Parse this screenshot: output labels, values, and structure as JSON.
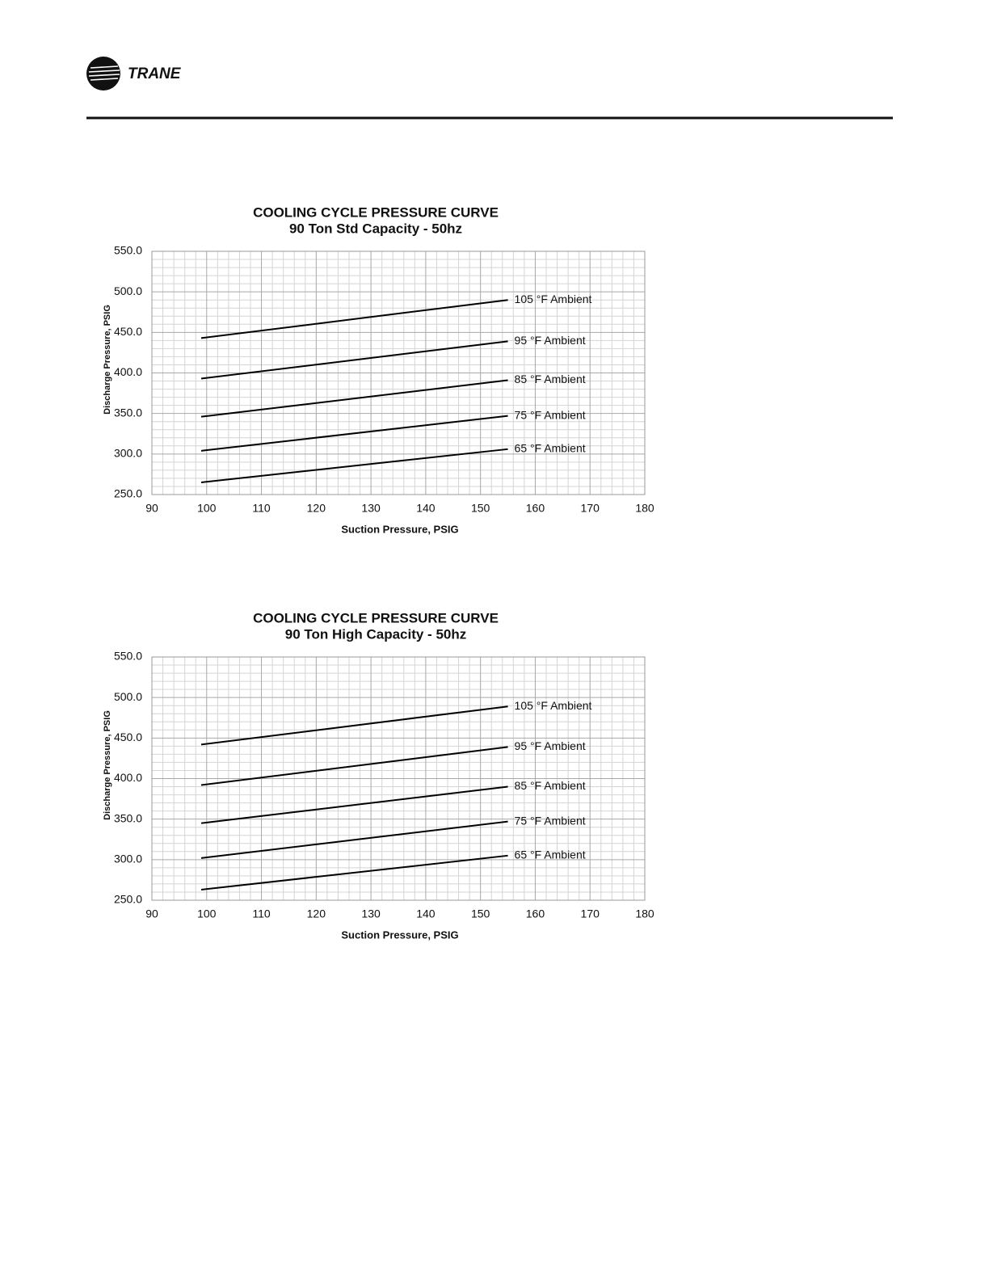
{
  "header": {
    "brand": "TRANE"
  },
  "chart_data": [
    {
      "type": "line",
      "title": "COOLING CYCLE PRESSURE CURVE",
      "subtitle": "90 Ton Std Capacity - 50hz",
      "x_label": "Suction Pressure, PSIG",
      "y_label": "Discharge Pressure, PSIG",
      "x": [
        99,
        155
      ],
      "series": [
        {
          "name": "105 °F Ambient",
          "color": "#000000",
          "values": [
            443,
            490
          ]
        },
        {
          "name": "95 °F Ambient",
          "color": "#000000",
          "values": [
            393,
            439
          ]
        },
        {
          "name": "85 °F Ambient",
          "color": "#000000",
          "values": [
            346,
            391
          ]
        },
        {
          "name": "75 °F Ambient",
          "color": "#000000",
          "values": [
            304,
            347
          ]
        },
        {
          "name": "65 °F Ambient",
          "color": "#000000",
          "values": [
            265,
            306
          ]
        }
      ],
      "xlim": [
        90,
        180
      ],
      "xticks": [
        90,
        100,
        110,
        120,
        130,
        140,
        150,
        160,
        170,
        180
      ],
      "ylim": [
        250,
        550
      ],
      "yticks": [
        {
          "value": 250,
          "label": "250.0"
        },
        {
          "value": 300,
          "label": "300.0"
        },
        {
          "value": 350,
          "label": "350.0"
        },
        {
          "value": 400,
          "label": "400.0"
        },
        {
          "value": 450,
          "label": "450.0"
        },
        {
          "value": 500,
          "label": "500.0"
        },
        {
          "value": 550,
          "label": "550.0"
        }
      ],
      "grid": true
    },
    {
      "type": "line",
      "title": "COOLING CYCLE PRESSURE CURVE",
      "subtitle": "90 Ton High Capacity - 50hz",
      "x_label": "Suction Pressure, PSIG",
      "y_label": "Discharge Pressure, PSIG",
      "x": [
        99,
        155
      ],
      "series": [
        {
          "name": "105 °F Ambient",
          "color": "#000000",
          "values": [
            442,
            489
          ]
        },
        {
          "name": "95 °F Ambient",
          "color": "#000000",
          "values": [
            392,
            439
          ]
        },
        {
          "name": "85 °F Ambient",
          "color": "#000000",
          "values": [
            345,
            390
          ]
        },
        {
          "name": "75 °F Ambient",
          "color": "#000000",
          "values": [
            302,
            347
          ]
        },
        {
          "name": "65 °F Ambient",
          "color": "#000000",
          "values": [
            263,
            305
          ]
        }
      ],
      "xlim": [
        90,
        180
      ],
      "xticks": [
        90,
        100,
        110,
        120,
        130,
        140,
        150,
        160,
        170,
        180
      ],
      "ylim": [
        250,
        550
      ],
      "yticks": [
        {
          "value": 250,
          "label": "250.0"
        },
        {
          "value": 300,
          "label": "300.0"
        },
        {
          "value": 350,
          "label": "350.0"
        },
        {
          "value": 400,
          "label": "400.0"
        },
        {
          "value": 450,
          "label": "450.0"
        },
        {
          "value": 500,
          "label": "500.0"
        },
        {
          "value": 550,
          "label": "550.0"
        }
      ],
      "grid": true
    }
  ]
}
